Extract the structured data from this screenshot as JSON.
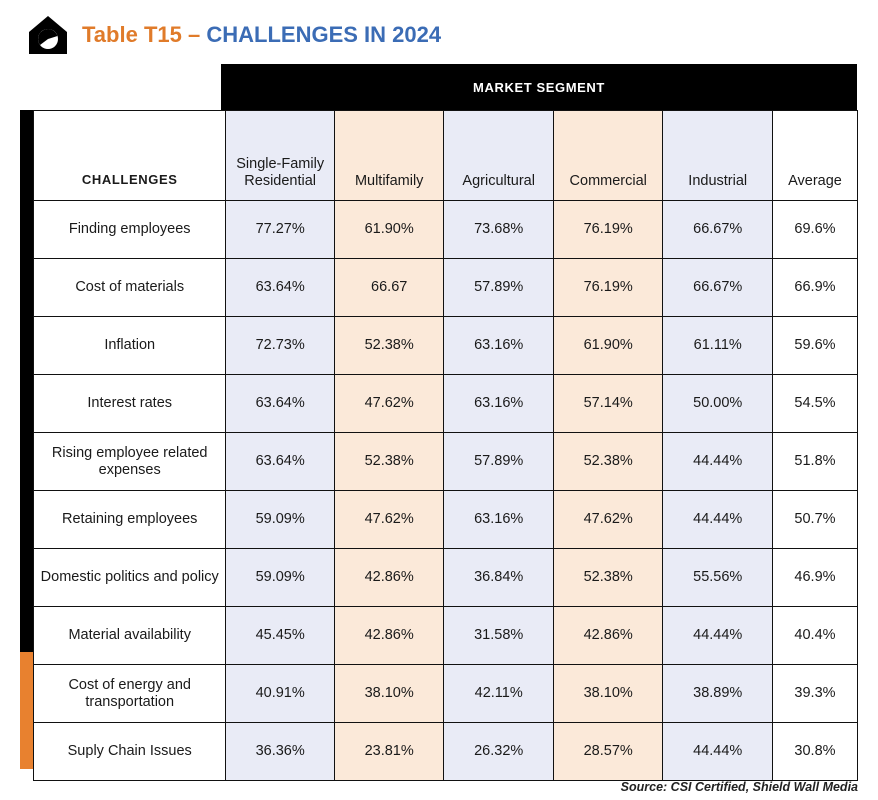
{
  "header": {
    "title_prefix": "Table T15",
    "title_dash": "–",
    "title_main": "CHALLENGES IN 2024"
  },
  "table": {
    "segment_header": "MARKET SEGMENT",
    "challenges_header": "CHALLENGES",
    "columns": [
      {
        "label": "Single-Family Residential",
        "tint": "blue"
      },
      {
        "label": "Multifamily",
        "tint": "peach"
      },
      {
        "label": "Agricultural",
        "tint": "blue"
      },
      {
        "label": "Commercial",
        "tint": "peach"
      },
      {
        "label": "Industrial",
        "tint": "blue"
      },
      {
        "label": "Average",
        "tint": "white"
      }
    ],
    "rows": [
      {
        "label": "Finding employees",
        "values": [
          "77.27%",
          "61.90%",
          "73.68%",
          "76.19%",
          "66.67%",
          "69.6%"
        ]
      },
      {
        "label": "Cost of materials",
        "values": [
          "63.64%",
          "66.67",
          "57.89%",
          "76.19%",
          "66.67%",
          "66.9%"
        ]
      },
      {
        "label": "Inflation",
        "values": [
          "72.73%",
          "52.38%",
          "63.16%",
          "61.90%",
          "61.11%",
          "59.6%"
        ]
      },
      {
        "label": "Interest rates",
        "values": [
          "63.64%",
          "47.62%",
          "63.16%",
          "57.14%",
          "50.00%",
          "54.5%"
        ]
      },
      {
        "label": "Rising employee related expenses",
        "values": [
          "63.64%",
          "52.38%",
          "57.89%",
          "52.38%",
          "44.44%",
          "51.8%"
        ]
      },
      {
        "label": "Retaining employees",
        "values": [
          "59.09%",
          "47.62%",
          "63.16%",
          "47.62%",
          "44.44%",
          "50.7%"
        ]
      },
      {
        "label": "Domestic politics and policy",
        "values": [
          "59.09%",
          "42.86%",
          "36.84%",
          "52.38%",
          "55.56%",
          "46.9%"
        ]
      },
      {
        "label": "Material availability",
        "values": [
          "45.45%",
          "42.86%",
          "31.58%",
          "42.86%",
          "44.44%",
          "40.4%"
        ]
      },
      {
        "label": "Cost of energy and transportation",
        "values": [
          "40.91%",
          "38.10%",
          "42.11%",
          "38.10%",
          "38.89%",
          "39.3%"
        ]
      },
      {
        "label": "Suply Chain Issues",
        "values": [
          "36.36%",
          "23.81%",
          "26.32%",
          "28.57%",
          "44.44%",
          "30.8%"
        ]
      }
    ]
  },
  "source": "Source: CSI Certified, Shield Wall Media",
  "colors": {
    "title_orange": "#e07b2a",
    "title_blue": "#3b6cb5",
    "column_blue": "#e9ebf6",
    "column_peach": "#fbe9d9",
    "accent_orange": "#e8812f",
    "header_black": "#000000"
  },
  "icons": {
    "logo": "house-pie-chart-icon"
  }
}
